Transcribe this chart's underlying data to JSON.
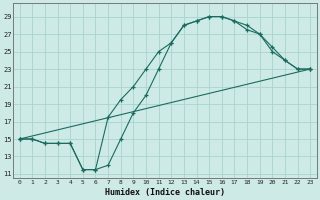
{
  "title": "",
  "xlabel": "Humidex (Indice chaleur)",
  "bg_color": "#ceeae6",
  "grid_color": "#a8d4cf",
  "line_color": "#1a6b60",
  "xlim": [
    -0.5,
    23.5
  ],
  "ylim": [
    10.5,
    30.5
  ],
  "xticks": [
    0,
    1,
    2,
    3,
    4,
    5,
    6,
    7,
    8,
    9,
    10,
    11,
    12,
    13,
    14,
    15,
    16,
    17,
    18,
    19,
    20,
    21,
    22,
    23
  ],
  "yticks": [
    11,
    13,
    15,
    17,
    19,
    21,
    23,
    25,
    27,
    29
  ],
  "line1_x": [
    0,
    1,
    2,
    3,
    4,
    5,
    6,
    7,
    8,
    9,
    10,
    11,
    12,
    13,
    14,
    15,
    16,
    17,
    18,
    19,
    20,
    21,
    22,
    23
  ],
  "line1_y": [
    15,
    15,
    14.5,
    14.5,
    14.5,
    11.5,
    11.5,
    12,
    15,
    18,
    20,
    23,
    26,
    28,
    28.5,
    29,
    29,
    28.5,
    28,
    27,
    25,
    24,
    23,
    23
  ],
  "line2_x": [
    0,
    1,
    2,
    3,
    4,
    5,
    6,
    7,
    8,
    9,
    10,
    11,
    12,
    13,
    14,
    15,
    16,
    17,
    18,
    19,
    20,
    21,
    22,
    23
  ],
  "line2_y": [
    15,
    15,
    14.5,
    14.5,
    14.5,
    11.5,
    11.5,
    17.5,
    19.5,
    21,
    23,
    25,
    26,
    28,
    28.5,
    29,
    29,
    28.5,
    27.5,
    27,
    25.5,
    24,
    23,
    23
  ],
  "line3_x": [
    0,
    23
  ],
  "line3_y": [
    15,
    23
  ]
}
